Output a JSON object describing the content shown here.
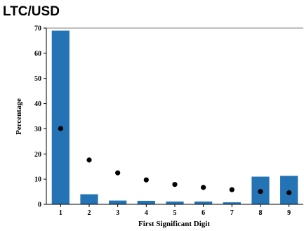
{
  "chart_data": {
    "type": "bar",
    "title": "LTC/USD",
    "xlabel": "First Significant Digit",
    "ylabel": "Percentage",
    "categories": [
      "1",
      "2",
      "3",
      "4",
      "5",
      "6",
      "7",
      "8",
      "9"
    ],
    "series": [
      {
        "type": "bar",
        "values": [
          69.0,
          4.0,
          1.5,
          1.4,
          1.1,
          1.1,
          0.8,
          11.0,
          11.3
        ],
        "color": "#2474b5"
      },
      {
        "type": "scatter",
        "values": [
          30.1,
          17.6,
          12.5,
          9.7,
          7.9,
          6.7,
          5.8,
          5.1,
          4.6
        ],
        "color": "#000000"
      }
    ],
    "ylim": [
      0,
      70
    ],
    "yticks": [
      0,
      10,
      20,
      30,
      40,
      50,
      60,
      70
    ],
    "grid": false
  }
}
